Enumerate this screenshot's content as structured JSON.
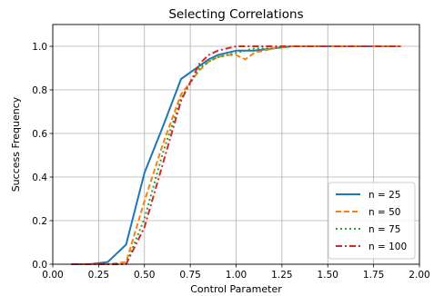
{
  "chart_data": {
    "type": "line",
    "title": "Selecting Correlations",
    "xlabel": "Control Parameter",
    "ylabel": "Success Frequency",
    "xlim": [
      0.0,
      2.0
    ],
    "ylim": [
      0.0,
      1.1
    ],
    "xticks": [
      "0.00",
      "0.25",
      "0.50",
      "0.75",
      "1.00",
      "1.25",
      "1.50",
      "1.75",
      "2.00"
    ],
    "yticks": [
      "0.0",
      "0.2",
      "0.4",
      "0.6",
      "0.8",
      "1.0"
    ],
    "grid": true,
    "legend_position": "bottom-right",
    "x": [
      0.1,
      0.2,
      0.3,
      0.4,
      0.5,
      0.6,
      0.7,
      0.8,
      0.85,
      0.9,
      0.95,
      1.0,
      1.05,
      1.1,
      1.2,
      1.3,
      1.4,
      1.5,
      1.6,
      1.7,
      1.8,
      1.9
    ],
    "series": [
      {
        "name": "n = 25",
        "color": "#1f77b4",
        "dash": "solid",
        "values": [
          0.0,
          0.0,
          0.01,
          0.09,
          0.42,
          0.63,
          0.85,
          0.91,
          0.94,
          0.96,
          0.97,
          0.98,
          0.98,
          0.98,
          0.99,
          1.0,
          1.0,
          1.0,
          1.0,
          1.0,
          1.0,
          1.0
        ]
      },
      {
        "name": "n = 50",
        "color": "#ff7f0e",
        "dash": "dashed",
        "values": [
          0.0,
          0.0,
          0.0,
          0.01,
          0.29,
          0.55,
          0.78,
          0.89,
          0.93,
          0.95,
          0.96,
          0.96,
          0.94,
          0.97,
          0.99,
          1.0,
          1.0,
          1.0,
          1.0,
          1.0,
          1.0,
          1.0
        ]
      },
      {
        "name": "n = 75",
        "color": "#2ca02c",
        "dash": "dotted",
        "values": [
          0.0,
          0.0,
          0.0,
          0.0,
          0.21,
          0.51,
          0.76,
          0.9,
          0.93,
          0.95,
          0.96,
          0.97,
          0.98,
          0.99,
          0.99,
          1.0,
          1.0,
          1.0,
          1.0,
          1.0,
          1.0,
          1.0
        ]
      },
      {
        "name": "n = 100",
        "color": "#d62728",
        "dash": "dashdot",
        "values": [
          0.0,
          0.0,
          0.0,
          0.0,
          0.17,
          0.46,
          0.75,
          0.92,
          0.96,
          0.98,
          0.99,
          1.0,
          1.0,
          1.0,
          1.0,
          1.0,
          1.0,
          1.0,
          1.0,
          1.0,
          1.0,
          1.0
        ]
      }
    ]
  }
}
